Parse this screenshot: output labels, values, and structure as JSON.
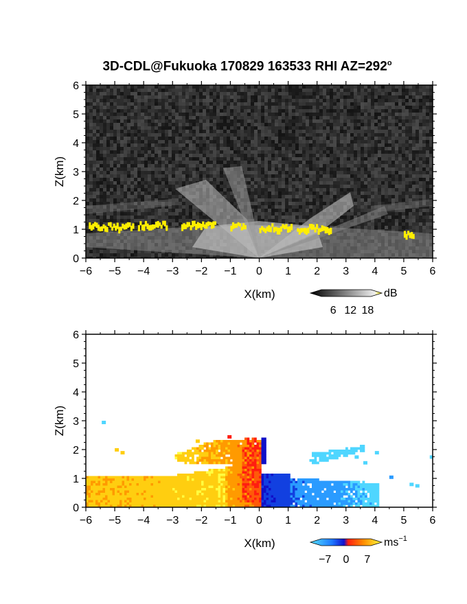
{
  "title": "3D-CDL@Fukuoka 170829 163533 RHI AZ=292",
  "title_superscript": "o",
  "chart_data": [
    {
      "type": "heatmap",
      "panel": "reflectivity",
      "xlabel": "X(km)",
      "ylabel": "Z(km)",
      "xlim": [
        -6,
        6
      ],
      "ylim": [
        0,
        6
      ],
      "xticks": [
        "−6",
        "−5",
        "−4",
        "−3",
        "−2",
        "−1",
        "0",
        "1",
        "2",
        "3",
        "4",
        "5",
        "6"
      ],
      "yticks": [
        "0",
        "1",
        "2",
        "3",
        "4",
        "5",
        "6"
      ],
      "colorbar": {
        "unit": "dB",
        "tick_labels": [
          "6",
          "12",
          "18"
        ],
        "ticks": [
          6,
          12,
          18
        ],
        "range": [
          0,
          21
        ]
      },
      "features": {
        "cloud_base_layer_km": [
          0.9,
          1.25
        ],
        "high_signal_color": "#ffee00"
      }
    },
    {
      "type": "heatmap",
      "panel": "radial-velocity",
      "xlabel": "X(km)",
      "ylabel": "Z(km)",
      "xlim": [
        -6,
        6
      ],
      "ylim": [
        0,
        6
      ],
      "xticks": [
        "−6",
        "−5",
        "−4",
        "−3",
        "−2",
        "−1",
        "0",
        "1",
        "2",
        "3",
        "4",
        "5",
        "6"
      ],
      "yticks": [
        "0",
        "1",
        "2",
        "3",
        "4",
        "5",
        "6"
      ],
      "colorbar": {
        "unit": "ms",
        "unit_superscript": "−1",
        "tick_labels": [
          "−7",
          "0",
          "7"
        ],
        "ticks": [
          -7,
          0,
          7
        ],
        "range": [
          -10,
          10
        ]
      }
    }
  ]
}
